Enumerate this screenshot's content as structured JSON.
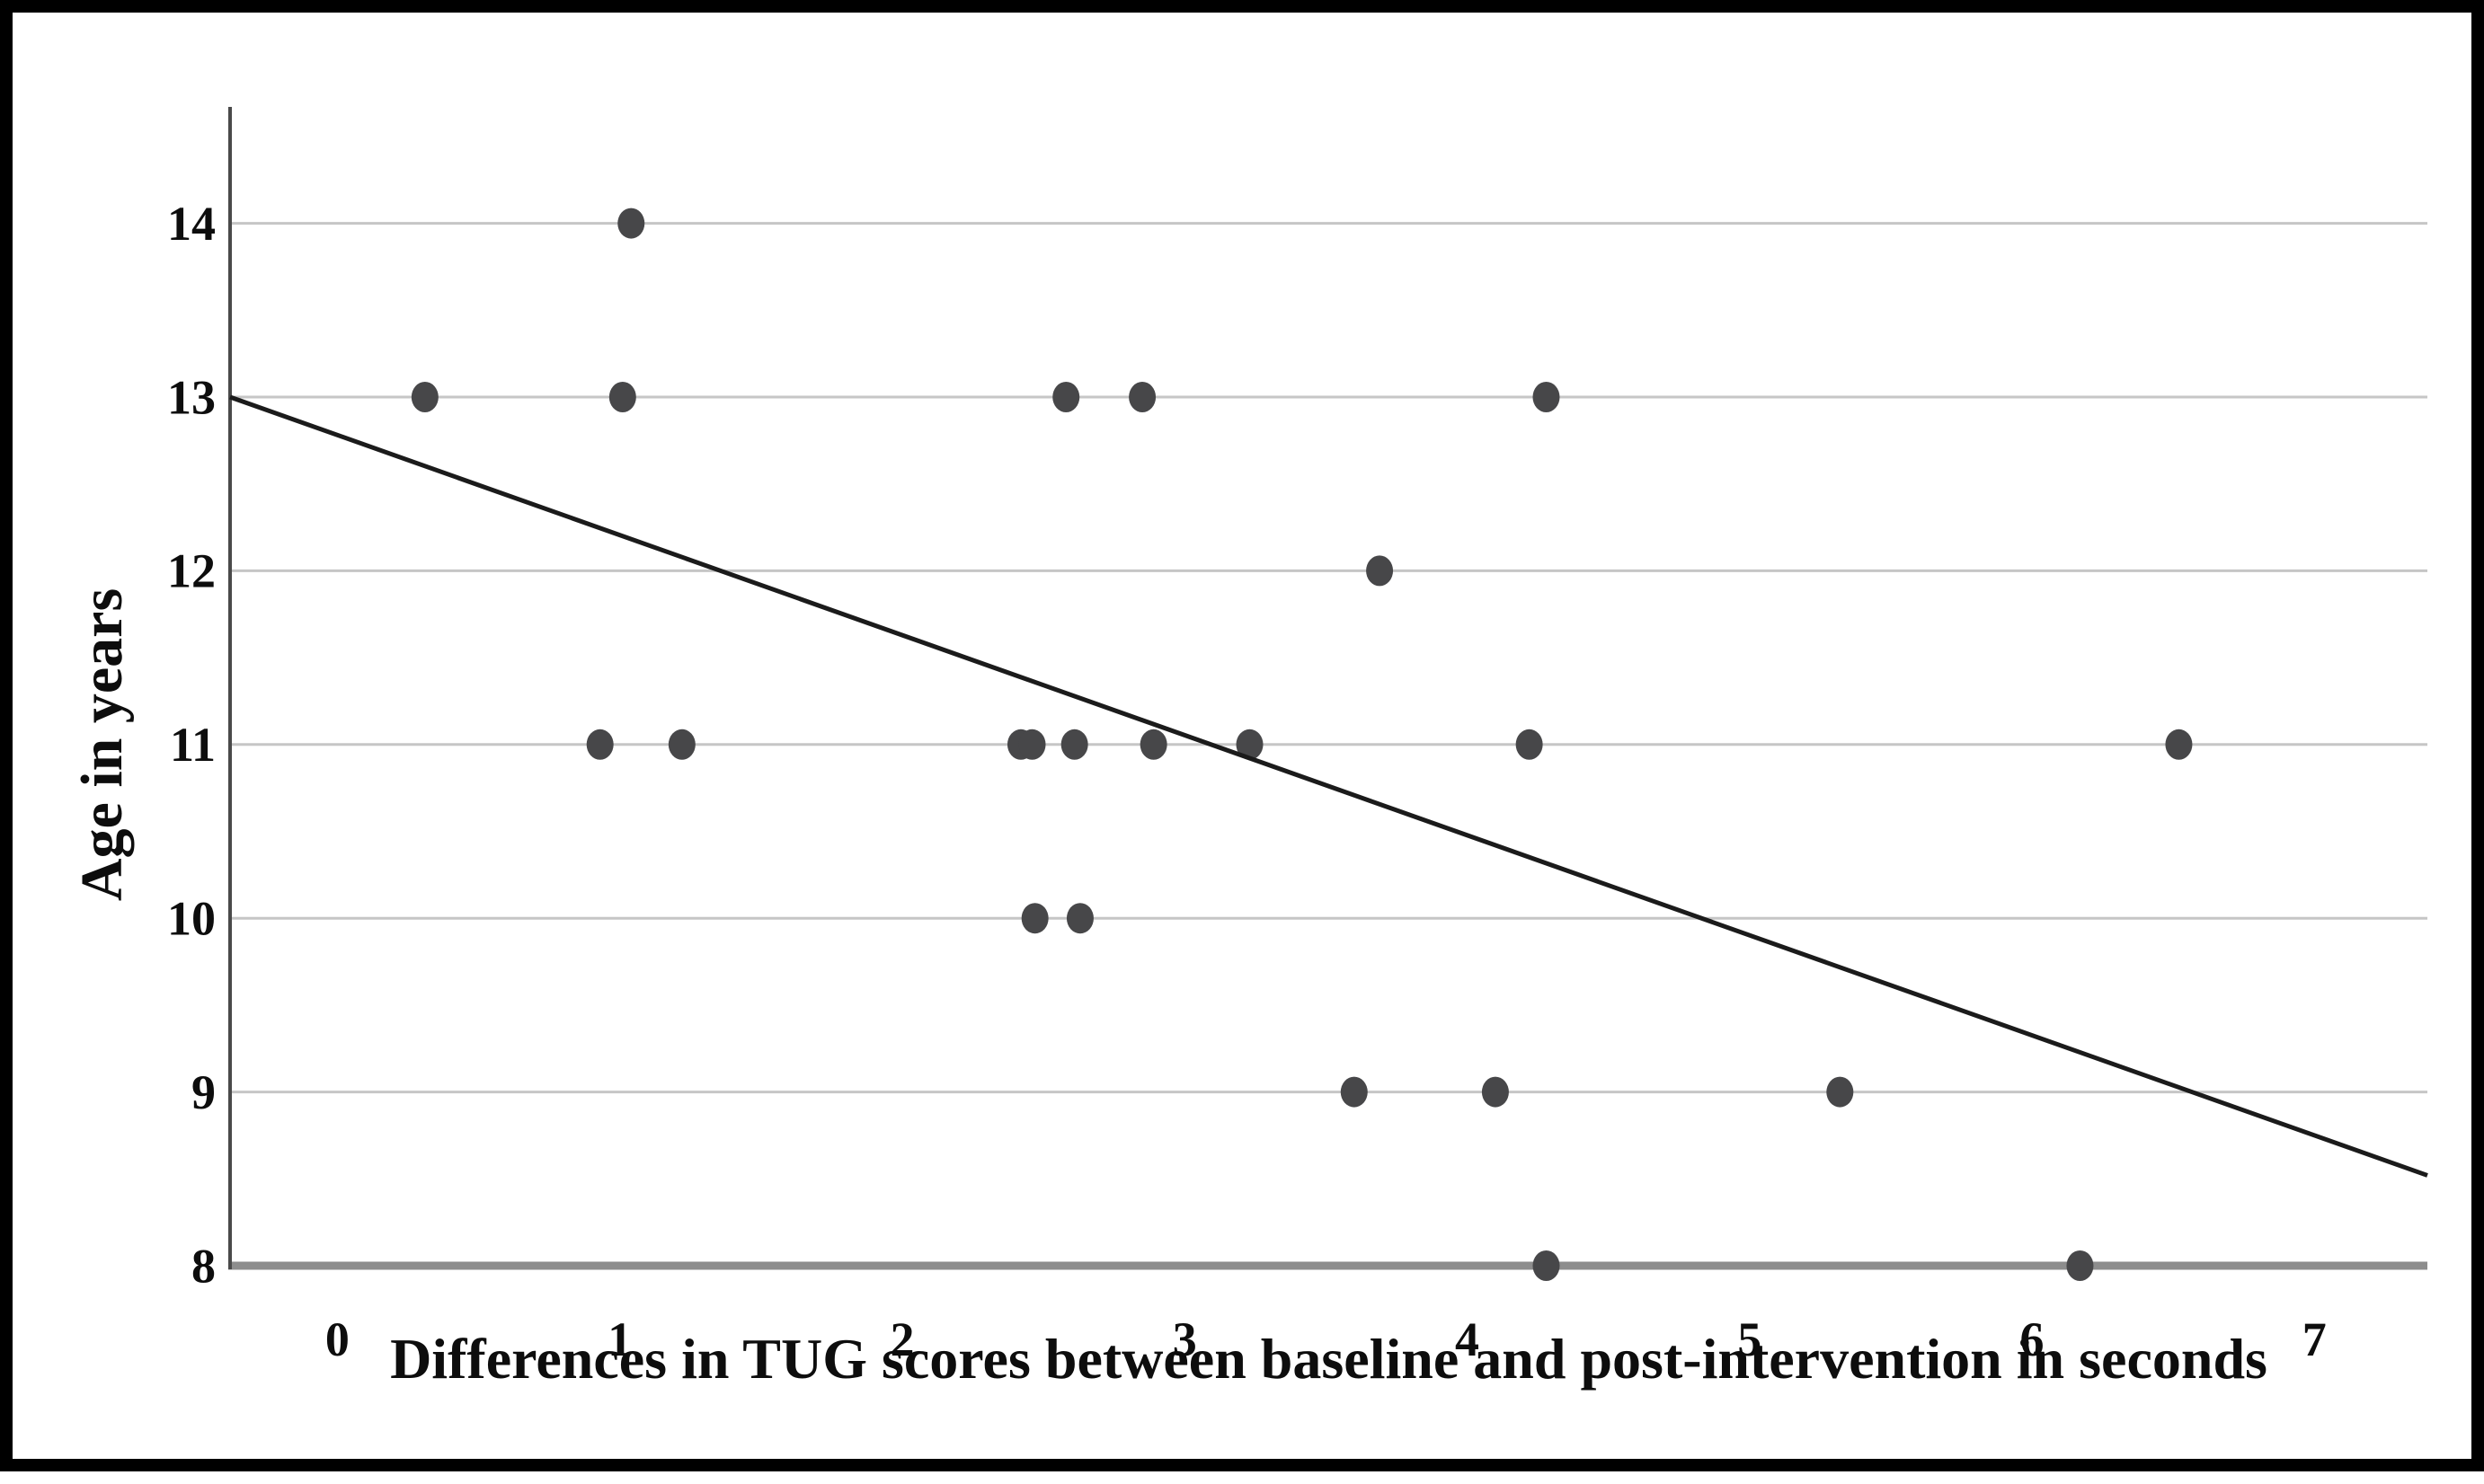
{
  "figure": {
    "background": "#ffffff",
    "border_color": "#000000"
  },
  "chart_data": {
    "type": "scatter",
    "title": "",
    "xlabel": "Differences in TUG scores between baseline and post-intervention in seconds",
    "ylabel": "Age in years",
    "x_ticks": [
      "0",
      "1",
      "2",
      "3",
      "4",
      "5",
      "6",
      "7"
    ],
    "y_ticks": [
      "8",
      "9",
      "10",
      "11",
      "12",
      "13",
      "14"
    ],
    "xlim": [
      -0.38,
      7.4
    ],
    "ylim": [
      8,
      14.67
    ],
    "grid": "horizontal",
    "legend": "none",
    "points": [
      {
        "x": 1.04,
        "y": 14
      },
      {
        "x": 0.31,
        "y": 13
      },
      {
        "x": 1.01,
        "y": 13
      },
      {
        "x": 2.58,
        "y": 13
      },
      {
        "x": 2.85,
        "y": 13
      },
      {
        "x": 4.28,
        "y": 13
      },
      {
        "x": 3.69,
        "y": 12
      },
      {
        "x": 0.93,
        "y": 11
      },
      {
        "x": 1.22,
        "y": 11
      },
      {
        "x": 2.42,
        "y": 11
      },
      {
        "x": 2.46,
        "y": 11
      },
      {
        "x": 2.61,
        "y": 11
      },
      {
        "x": 2.89,
        "y": 11
      },
      {
        "x": 3.23,
        "y": 11
      },
      {
        "x": 4.22,
        "y": 11
      },
      {
        "x": 6.52,
        "y": 11
      },
      {
        "x": 2.47,
        "y": 10
      },
      {
        "x": 2.63,
        "y": 10
      },
      {
        "x": 3.6,
        "y": 9
      },
      {
        "x": 4.1,
        "y": 9
      },
      {
        "x": 5.32,
        "y": 9
      },
      {
        "x": 4.28,
        "y": 8
      },
      {
        "x": 6.17,
        "y": 8
      }
    ],
    "trendline": {
      "x1": -0.38,
      "y1": 13.0,
      "x2": 7.4,
      "y2": 8.52
    },
    "colors": {
      "point": "#474749",
      "trendline": "#1b1b1b",
      "gridline": "#c6c6c6",
      "baseline": "#8d8d8d",
      "axis": "#4a4a4a",
      "text": "#0d0d0d"
    }
  }
}
